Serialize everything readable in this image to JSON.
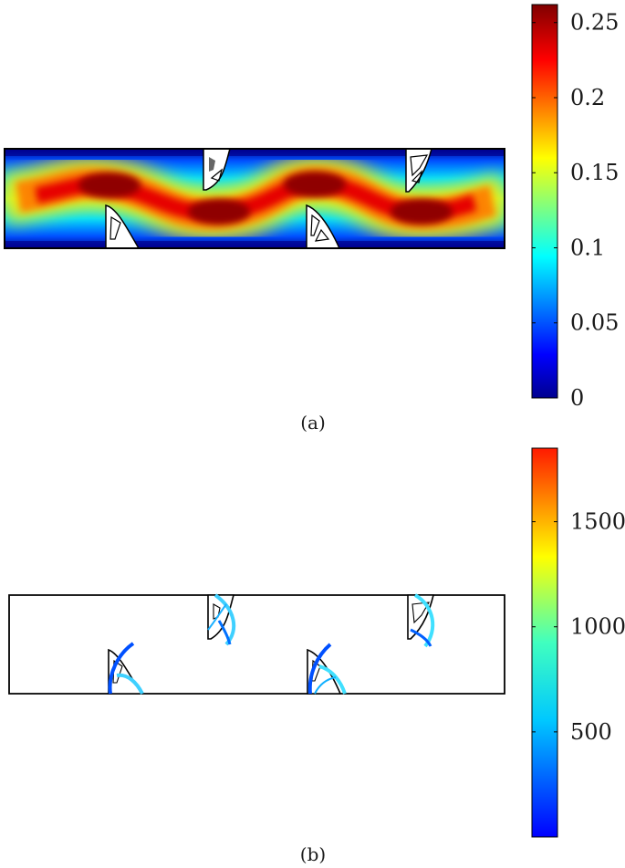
{
  "panel_a": {
    "caption": "(a)",
    "colorbar": {
      "ticks": [
        "0",
        "0.05",
        "0.1",
        "0.15",
        "0.2",
        "0.25"
      ],
      "tick_values": [
        0,
        0.05,
        0.1,
        0.15,
        0.2,
        0.25
      ],
      "range": [
        0,
        0.262
      ],
      "colormap": "jet"
    }
  },
  "panel_b": {
    "caption": "(b)",
    "colorbar": {
      "ticks": [
        "500",
        "1000",
        "1500"
      ],
      "tick_values": [
        500,
        1000,
        1500
      ],
      "range": [
        0,
        1850
      ],
      "colormap": "jet"
    }
  },
  "colors": {
    "jet_dark_blue": "#00008f",
    "jet_blue": "#0000ff",
    "jet_cyan": "#00ffff",
    "jet_yellow": "#ffff00",
    "jet_red": "#ff0000",
    "jet_dark_red": "#800000",
    "outline": "#000000"
  }
}
